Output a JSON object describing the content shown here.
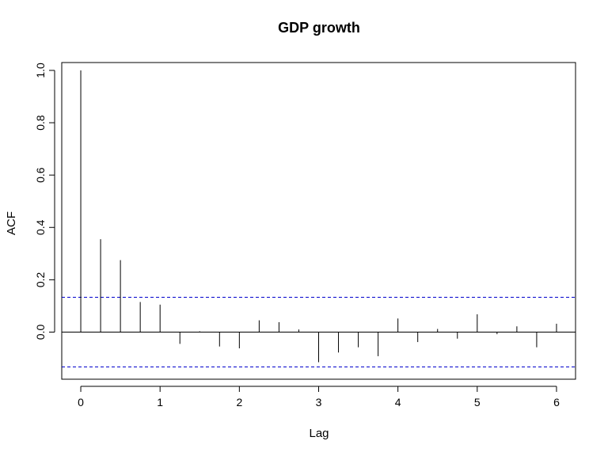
{
  "chart_data": {
    "type": "bar",
    "title": "GDP growth",
    "xlabel": "Lag",
    "ylabel": "ACF",
    "xlim": [
      -0.24,
      6.24
    ],
    "ylim": [
      -0.18,
      1.03
    ],
    "x_ticks": [
      0,
      1,
      2,
      3,
      4,
      5,
      6
    ],
    "x_tick_labels": [
      "0",
      "1",
      "2",
      "3",
      "4",
      "5",
      "6"
    ],
    "y_ticks": [
      0.0,
      0.2,
      0.4,
      0.6,
      0.8,
      1.0
    ],
    "y_tick_labels": [
      "0.0",
      "0.2",
      "0.4",
      "0.6",
      "0.8",
      "1.0"
    ],
    "confidence_bounds": [
      0.133,
      -0.133
    ],
    "zero_line": 0,
    "lags": [
      0,
      0.25,
      0.5,
      0.75,
      1,
      1.25,
      1.5,
      1.75,
      2,
      2.25,
      2.5,
      2.75,
      3,
      3.25,
      3.5,
      3.75,
      4,
      4.25,
      4.5,
      4.75,
      5,
      5.25,
      5.5,
      5.75,
      6
    ],
    "acf": [
      1.0,
      0.355,
      0.275,
      0.115,
      0.105,
      -0.045,
      0.003,
      -0.055,
      -0.062,
      0.045,
      0.038,
      0.01,
      -0.115,
      -0.078,
      -0.058,
      -0.092,
      0.052,
      -0.038,
      0.012,
      -0.025,
      0.068,
      -0.008,
      0.022,
      -0.058,
      0.032
    ],
    "colors": {
      "bars": "#000000",
      "bounds": "#0000CC",
      "axes": "#000000"
    }
  }
}
